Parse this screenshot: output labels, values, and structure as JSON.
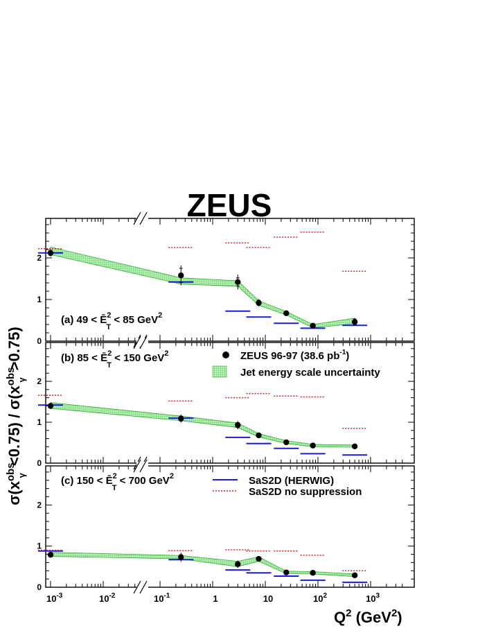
{
  "title": "ZEUS",
  "ylabel": {
    "a": "σ(x",
    "b": "obs",
    "c": "γ",
    "d": "<0.75) / σ(x",
    "e": "obs",
    "f": "γ",
    "g": ">0.75)"
  },
  "xlabel": {
    "main": "Q",
    "sup": "2",
    "unit_open": " (GeV",
    "unit_sup": "2",
    "unit_close": ")"
  },
  "legend": {
    "data": "ZEUS 96-97 (38.6 pb",
    "data_sup": "-1",
    "data_close": ")",
    "band": "Jet energy scale uncertainty",
    "herwig": "SaS2D (HERWIG)",
    "nosupp": "SaS2D  no suppression"
  },
  "colors": {
    "herwig": "#1a1adc",
    "nosupp": "#e02020",
    "band": "#7ee07e",
    "band_edge": "#2fae2f",
    "data": "#000000"
  },
  "x_tick_labels": [
    "10",
    "-3",
    "10",
    "-2",
    "10",
    "-1",
    "1",
    "10",
    "10",
    "2",
    "10",
    "3"
  ],
  "y_tick_labels": [
    "0",
    "1",
    "2"
  ],
  "chart_data": [
    {
      "type": "scatter",
      "panel_label": {
        "pre": "(a)  49  < ",
        "e": "Ē",
        "sup": "2",
        "sub": "T",
        "post": " < 85 GeV",
        "post_sup": "2"
      },
      "x": [
        0.001,
        0.25,
        3,
        7.5,
        25,
        80,
        500
      ],
      "data": [
        2.12,
        1.58,
        1.42,
        0.92,
        0.67,
        0.37,
        0.46
      ],
      "stat_err": [
        0.06,
        0.17,
        0.1,
        0.06,
        0.03,
        0.04,
        0.07
      ],
      "sys_err": [
        0.09,
        0.24,
        0.18,
        0.09,
        0.05,
        0.06,
        0.09
      ],
      "herwig": [
        2.12,
        1.42,
        0.72,
        0.58,
        0.43,
        0.31,
        0.38
      ],
      "no_suppression": [
        2.22,
        2.25,
        2.36,
        2.25,
        2.5,
        2.62,
        1.68
      ],
      "band_low": [
        2.08,
        1.37,
        1.32,
        0.86,
        0.63,
        0.32,
        0.42
      ],
      "band_high": [
        2.26,
        1.52,
        1.45,
        0.97,
        0.71,
        0.4,
        0.55
      ],
      "ylim": [
        0,
        2.95
      ],
      "xscale": "log"
    },
    {
      "type": "scatter",
      "panel_label": {
        "pre": "(b)  85  < ",
        "e": "Ē",
        "sup": "2",
        "sub": "T",
        "post": " < 150 GeV",
        "post_sup": "2"
      },
      "x": [
        0.001,
        0.25,
        3,
        7.5,
        25,
        80,
        500
      ],
      "data": [
        1.4,
        1.09,
        0.93,
        0.68,
        0.51,
        0.43,
        0.41
      ],
      "stat_err": [
        0.05,
        0.06,
        0.06,
        0.04,
        0.02,
        0.02,
        0.02
      ],
      "sys_err": [
        0.08,
        0.1,
        0.1,
        0.06,
        0.04,
        0.03,
        0.03
      ],
      "herwig": [
        1.42,
        1.1,
        0.63,
        0.48,
        0.36,
        0.23,
        0.2
      ],
      "no_suppression": [
        1.66,
        1.52,
        1.6,
        1.7,
        1.64,
        1.62,
        0.85
      ],
      "band_low": [
        1.34,
        1.04,
        0.87,
        0.64,
        0.48,
        0.4,
        0.39
      ],
      "band_high": [
        1.48,
        1.15,
        0.98,
        0.72,
        0.55,
        0.46,
        0.44
      ],
      "ylim": [
        0,
        2.95
      ],
      "xscale": "log"
    },
    {
      "type": "scatter",
      "panel_label": {
        "pre": "(c)  150 < ",
        "e": "Ē",
        "sup": "2",
        "sub": "T",
        "post": " < 700 GeV",
        "post_sup": "2"
      },
      "x": [
        0.001,
        0.25,
        3,
        7.5,
        25,
        80,
        500
      ],
      "data": [
        0.79,
        0.73,
        0.56,
        0.69,
        0.36,
        0.35,
        0.29
      ],
      "stat_err": [
        0.05,
        0.06,
        0.05,
        0.04,
        0.02,
        0.02,
        0.02
      ],
      "sys_err": [
        0.07,
        0.11,
        0.09,
        0.06,
        0.03,
        0.03,
        0.03
      ],
      "herwig": [
        0.88,
        0.67,
        0.42,
        0.35,
        0.27,
        0.17,
        0.12
      ],
      "no_suppression": [
        0.9,
        0.89,
        0.91,
        0.88,
        0.88,
        0.78,
        0.4
      ],
      "band_low": [
        0.75,
        0.69,
        0.5,
        0.63,
        0.33,
        0.32,
        0.26
      ],
      "band_high": [
        0.85,
        0.77,
        0.63,
        0.74,
        0.39,
        0.38,
        0.32
      ],
      "ylim": [
        0,
        2.95
      ],
      "xscale": "log"
    }
  ]
}
